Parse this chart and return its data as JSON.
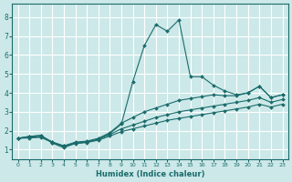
{
  "xlabel": "Humidex (Indice chaleur)",
  "xlim": [
    -0.5,
    23.5
  ],
  "ylim": [
    0.5,
    8.7
  ],
  "xticks": [
    0,
    1,
    2,
    3,
    4,
    5,
    6,
    7,
    8,
    9,
    10,
    11,
    12,
    13,
    14,
    15,
    16,
    17,
    18,
    19,
    20,
    21,
    22,
    23
  ],
  "yticks": [
    1,
    2,
    3,
    4,
    5,
    6,
    7,
    8
  ],
  "bg_color": "#cce8e8",
  "grid_color": "#ffffff",
  "line_color": "#1a6b6b",
  "lines": [
    {
      "x": [
        0,
        1,
        2,
        3,
        4,
        5,
        6,
        7,
        8,
        9,
        10,
        11,
        12,
        13,
        14,
        15,
        16,
        17,
        18,
        19,
        20,
        21,
        22,
        23
      ],
      "y": [
        1.6,
        1.7,
        1.75,
        1.35,
        1.1,
        1.35,
        1.4,
        1.55,
        1.85,
        2.35,
        4.6,
        6.5,
        7.6,
        7.25,
        7.85,
        4.85,
        4.85,
        4.4,
        4.1,
        3.9,
        4.0,
        4.35,
        3.75,
        3.9
      ]
    },
    {
      "x": [
        0,
        1,
        2,
        3,
        4,
        5,
        6,
        7,
        8,
        9,
        10,
        11,
        12,
        13,
        14,
        15,
        16,
        17,
        18,
        19,
        20,
        21,
        22,
        23
      ],
      "y": [
        1.6,
        1.7,
        1.75,
        1.4,
        1.2,
        1.4,
        1.45,
        1.6,
        1.9,
        2.4,
        2.7,
        3.0,
        3.2,
        3.4,
        3.6,
        3.7,
        3.8,
        3.9,
        3.85,
        3.85,
        4.0,
        4.35,
        3.75,
        3.9
      ]
    },
    {
      "x": [
        0,
        1,
        2,
        3,
        4,
        5,
        6,
        7,
        8,
        9,
        10,
        11,
        12,
        13,
        14,
        15,
        16,
        17,
        18,
        19,
        20,
        21,
        22,
        23
      ],
      "y": [
        1.6,
        1.65,
        1.7,
        1.4,
        1.2,
        1.35,
        1.4,
        1.55,
        1.8,
        2.1,
        2.3,
        2.5,
        2.7,
        2.85,
        3.0,
        3.1,
        3.2,
        3.3,
        3.4,
        3.5,
        3.6,
        3.75,
        3.5,
        3.65
      ]
    },
    {
      "x": [
        0,
        1,
        2,
        3,
        4,
        5,
        6,
        7,
        8,
        9,
        10,
        11,
        12,
        13,
        14,
        15,
        16,
        17,
        18,
        19,
        20,
        21,
        22,
        23
      ],
      "y": [
        1.6,
        1.62,
        1.65,
        1.38,
        1.15,
        1.32,
        1.38,
        1.5,
        1.72,
        1.95,
        2.1,
        2.25,
        2.4,
        2.55,
        2.65,
        2.75,
        2.85,
        2.95,
        3.05,
        3.15,
        3.25,
        3.4,
        3.25,
        3.4
      ]
    }
  ]
}
